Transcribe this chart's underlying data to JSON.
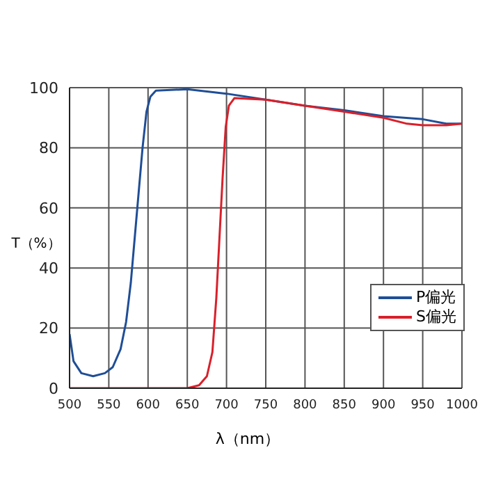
{
  "chart_data": {
    "type": "line",
    "xlabel": "λ（nm）",
    "ylabel": "T（%）",
    "xlim": [
      500,
      1000
    ],
    "xticks": [
      500,
      550,
      600,
      650,
      700,
      750,
      800,
      850,
      900,
      950,
      1000
    ],
    "ylim": [
      0,
      100
    ],
    "yticks": [
      0,
      20,
      40,
      60,
      80,
      100
    ],
    "grid": true,
    "legend": "bottom right",
    "marker": "none",
    "line_style": "solid",
    "series": [
      {
        "name": "P偏光",
        "color": "#1f4e96",
        "x": [
          500,
          505,
          515,
          530,
          545,
          555,
          565,
          572,
          578,
          583,
          588,
          593,
          598,
          603,
          610,
          650,
          700,
          750,
          800,
          850,
          900,
          950,
          980,
          1000
        ],
        "values": [
          18,
          9,
          5,
          4,
          5,
          7,
          13,
          22,
          35,
          50,
          65,
          80,
          92,
          97,
          99,
          99.5,
          98,
          96,
          94,
          92.5,
          90.5,
          89.5,
          88,
          88
        ]
      },
      {
        "name": "S偏光",
        "color": "#d9202a",
        "x": [
          500,
          650,
          665,
          675,
          682,
          687,
          691,
          695,
          699,
          703,
          710,
          750,
          800,
          850,
          900,
          930,
          950,
          980,
          1000
        ],
        "values": [
          0,
          0,
          1,
          4,
          12,
          30,
          50,
          70,
          87,
          94,
          96.5,
          96,
          94,
          92,
          90,
          88,
          87.5,
          87.5,
          88
        ]
      }
    ]
  }
}
